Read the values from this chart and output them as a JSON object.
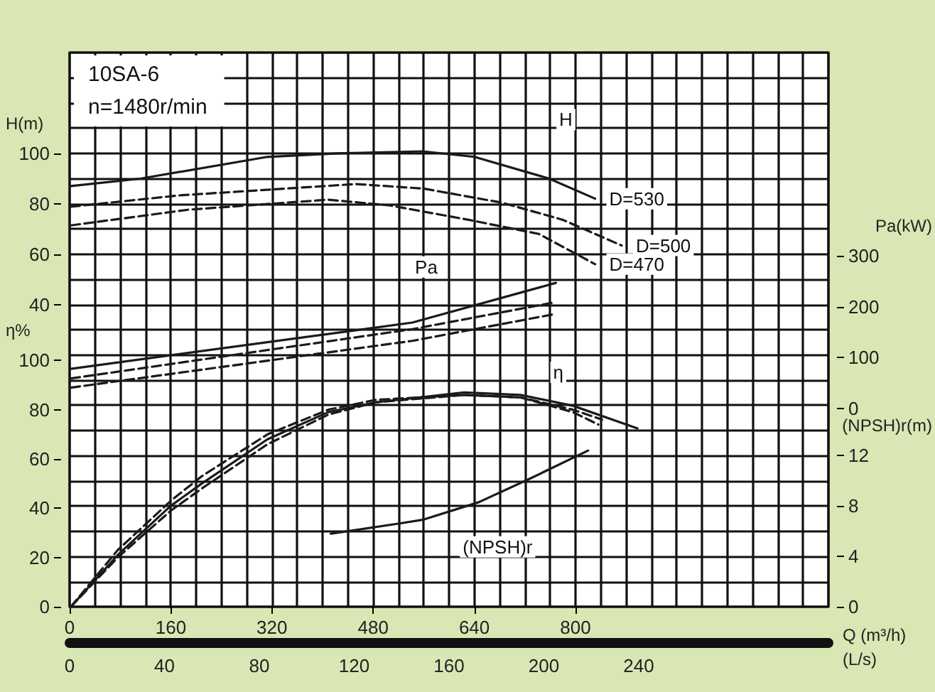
{
  "chart_data": [
    {
      "type": "line",
      "title": "10SA-6",
      "subtitle": "n=1480r/min",
      "xlabel": "Q (m³/h)",
      "x2label": "(L/s)",
      "ylabel": "H(m)",
      "y2label": "Pa(kW)",
      "xlim": [
        0,
        1200
      ],
      "xticks": [
        0,
        160,
        320,
        480,
        640,
        800
      ],
      "x2lim": [
        0,
        320
      ],
      "x2ticks": [
        0,
        40,
        80,
        120,
        160,
        200,
        240
      ],
      "ylim": [
        -80,
        140
      ],
      "yticks": [
        40,
        60,
        80,
        100
      ],
      "y2lim": [
        -390,
        700
      ],
      "y2ticks": [
        0,
        100,
        200,
        300
      ],
      "grid": true,
      "marker": "none",
      "series": [
        {
          "name": "D=530",
          "color": "#1a1a1a",
          "line_style": "solid",
          "x": [
            2,
            113,
            313,
            424,
            558,
            640,
            758,
            831
          ],
          "values": [
            87,
            90,
            98.6,
            100,
            100.8,
            98.6,
            90,
            82
          ]
        },
        {
          "name": "D=500",
          "color": "#1a1a1a",
          "line_style": "dashed",
          "x": [
            2,
            173,
            453,
            560,
            684,
            780,
            873
          ],
          "values": [
            78.8,
            83.3,
            87.8,
            86,
            80.4,
            73.6,
            63.4
          ]
        },
        {
          "name": "D=470",
          "color": "#1a1a1a",
          "line_style": "dashed",
          "x": [
            2,
            187,
            409,
            507,
            631,
            742,
            831
          ],
          "values": [
            71.4,
            77.6,
            81.6,
            79.3,
            73.6,
            68,
            56
          ]
        },
        {
          "color": "#1a1a1a",
          "axis": "y2",
          "line_style": "solid",
          "x": [
            2,
            542,
            769
          ],
          "values": [
            78,
            169,
            247
          ]
        },
        {
          "color": "#1a1a1a",
          "axis": "y2",
          "line_style": "dashed",
          "x": [
            2,
            542,
            764
          ],
          "values": [
            59,
            156,
            208
          ]
        },
        {
          "color": "#1a1a1a",
          "axis": "y2",
          "line_style": "dashed",
          "x": [
            2,
            542,
            769
          ],
          "values": [
            41,
            133,
            186
          ]
        }
      ],
      "annotations": [
        "H",
        "Pa"
      ]
    },
    {
      "type": "line",
      "ylabel": "η%",
      "y2label": "(NPSH)r(m)",
      "xlim": [
        0,
        1200
      ],
      "ylim": [
        0,
        225
      ],
      "yticks": [
        0,
        20,
        40,
        60,
        80,
        100
      ],
      "y2lim": [
        0,
        44
      ],
      "y2ticks": [
        0,
        4,
        8,
        12
      ],
      "tick_labels": "y",
      "marker": "none",
      "series": [
        {
          "color": "#1a1a1a",
          "line_style": "solid",
          "x": [
            2,
            76,
            160,
            209,
            313,
            409,
            484,
            624,
            713,
            796,
            898
          ],
          "values": [
            0,
            21,
            41,
            50,
            68,
            79,
            83,
            87,
            86,
            81.6,
            72.4
          ]
        },
        {
          "color": "#1a1a1a",
          "line_style": "dashed",
          "x": [
            2,
            76,
            160,
            209,
            313,
            409,
            484,
            624,
            713,
            796,
            842
          ],
          "values": [
            0,
            23,
            43,
            53,
            70,
            80,
            84,
            86,
            85,
            80,
            76
          ]
        },
        {
          "color": "#1a1a1a",
          "line_style": "dashed",
          "x": [
            2,
            76,
            160,
            209,
            313,
            409,
            484,
            624,
            713,
            796,
            836
          ],
          "values": [
            0,
            20,
            39,
            48,
            66,
            78,
            83,
            86,
            85,
            79,
            74
          ]
        },
        {
          "color": "#1a1a1a",
          "axis": "y2",
          "line_style": "solid",
          "x": [
            413,
            520,
            558,
            647,
            729,
            820
          ],
          "values": [
            5.8,
            6.6,
            6.9,
            8.3,
            10.2,
            12.4
          ]
        }
      ],
      "annotations": [
        "η",
        "(NPSH)r"
      ]
    }
  ]
}
